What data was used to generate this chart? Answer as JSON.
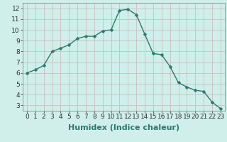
{
  "x": [
    0,
    1,
    2,
    3,
    4,
    5,
    6,
    7,
    8,
    9,
    10,
    11,
    12,
    13,
    14,
    15,
    16,
    17,
    18,
    19,
    20,
    21,
    22,
    23
  ],
  "y": [
    6.0,
    6.3,
    6.7,
    8.0,
    8.3,
    8.6,
    9.2,
    9.4,
    9.4,
    9.9,
    10.0,
    11.8,
    11.9,
    11.4,
    9.6,
    7.8,
    7.7,
    6.6,
    5.1,
    4.7,
    4.4,
    4.3,
    3.3,
    2.7
  ],
  "line_color": "#2d7a6a",
  "marker": "D",
  "marker_size": 2.5,
  "bg_color": "#d0eeea",
  "grid_color": "#c8b8b8",
  "xlabel": "Humidex (Indice chaleur)",
  "xlabel_fontsize": 8,
  "xlim": [
    -0.5,
    23.5
  ],
  "ylim": [
    2.5,
    12.5
  ],
  "yticks": [
    3,
    4,
    5,
    6,
    7,
    8,
    9,
    10,
    11,
    12
  ],
  "xticks": [
    0,
    1,
    2,
    3,
    4,
    5,
    6,
    7,
    8,
    9,
    10,
    11,
    12,
    13,
    14,
    15,
    16,
    17,
    18,
    19,
    20,
    21,
    22,
    23
  ],
  "tick_fontsize": 6.5,
  "line_width": 1.0
}
